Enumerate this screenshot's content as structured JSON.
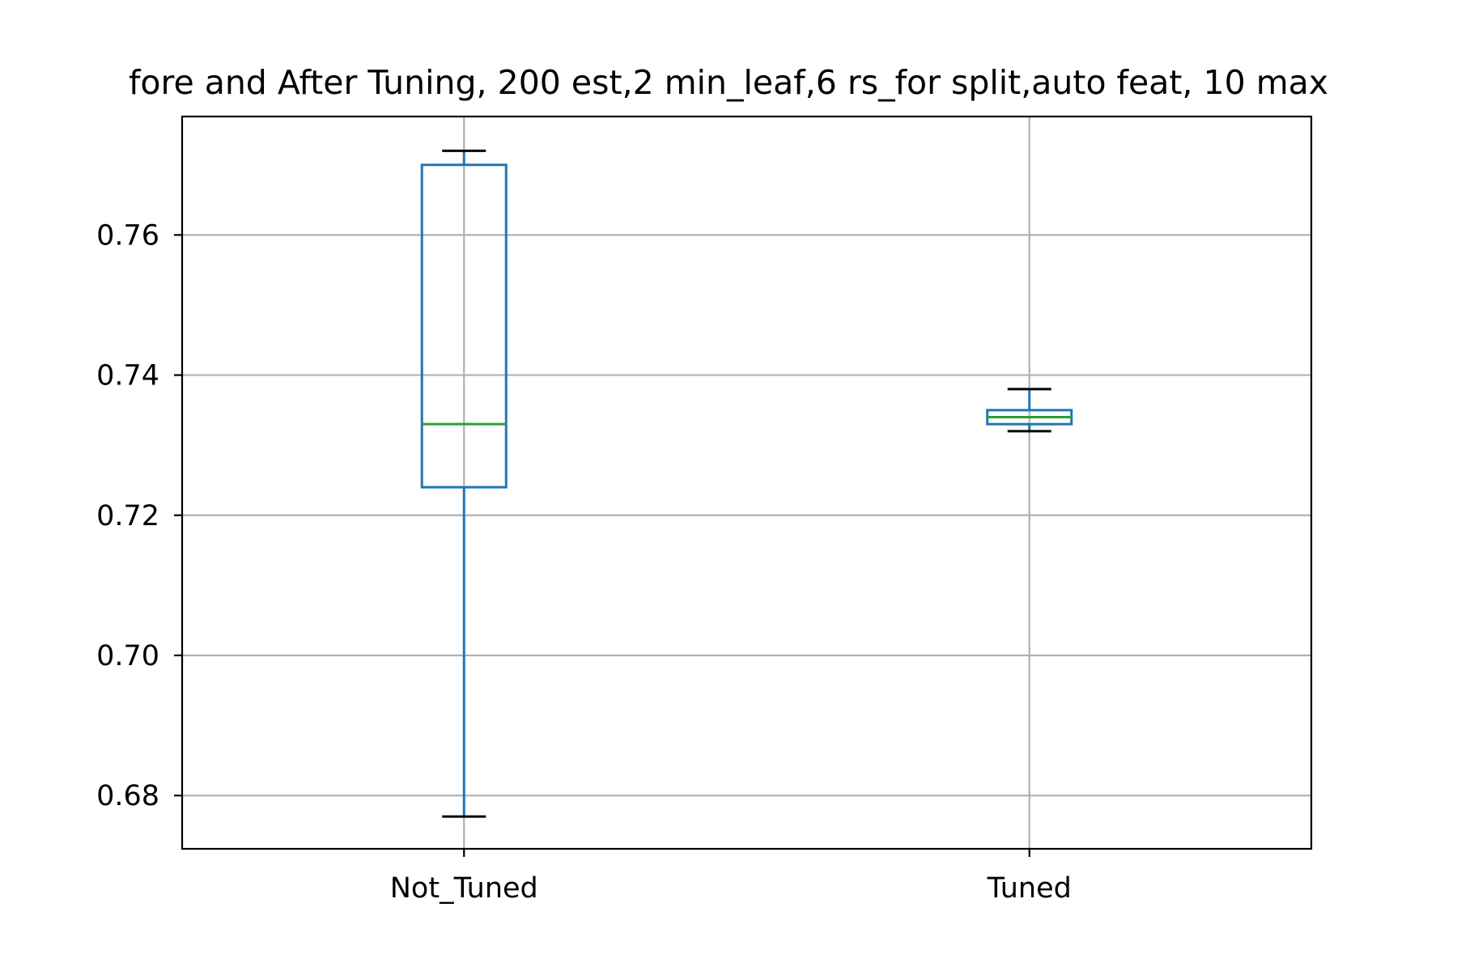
{
  "chart_data": {
    "type": "box",
    "title": "fore and After Tuning, 200 est,2 min_leaf,6 rs_for split,auto feat, 10 max",
    "xlabel": "",
    "ylabel": "",
    "categories": [
      "Not_Tuned",
      "Tuned"
    ],
    "boxes": [
      {
        "category": "Not_Tuned",
        "whisker_low": 0.677,
        "q1": 0.724,
        "median": 0.733,
        "q3": 0.77,
        "whisker_high": 0.772
      },
      {
        "category": "Tuned",
        "whisker_low": 0.732,
        "q1": 0.733,
        "median": 0.734,
        "q3": 0.735,
        "whisker_high": 0.738
      }
    ],
    "ylim": [
      0.6724,
      0.7769
    ],
    "yticks": [
      0.68,
      0.7,
      0.72,
      0.74,
      0.76
    ],
    "ytick_labels": [
      "0.68",
      "0.70",
      "0.72",
      "0.74",
      "0.76"
    ],
    "grid": true,
    "colors": {
      "box": "#1f77b4",
      "median": "#2ca02c",
      "caps": "#000000",
      "grid": "#b0b0b0",
      "axes": "#000000"
    }
  }
}
